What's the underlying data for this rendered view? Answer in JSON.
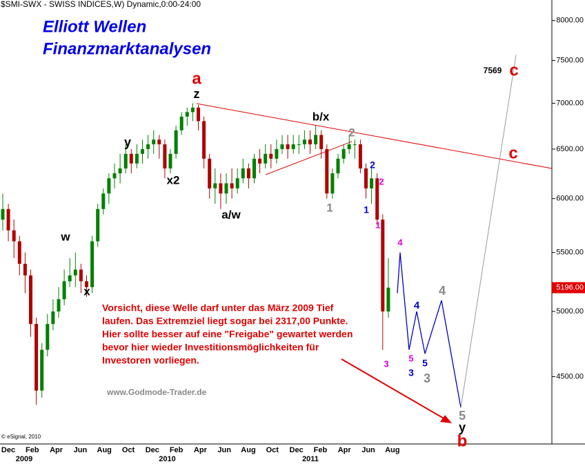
{
  "chart_data": {
    "type": "candlestick",
    "header": "$SMI-SWX - SWISS INDICES,W) Dynamic,0:00-24:00",
    "title": [
      "Elliott Wellen",
      "Finanzmarktanalysen"
    ],
    "log_scale": true,
    "ylim": [
      4050,
      8270
    ],
    "yticks": [
      {
        "value": 8000,
        "label": "8000.00"
      },
      {
        "value": 7500,
        "label": "7500.00"
      },
      {
        "value": 7000,
        "label": "7000.00"
      },
      {
        "value": 6500,
        "label": "6500.00"
      },
      {
        "value": 6000,
        "label": "6000.00"
      },
      {
        "value": 5500,
        "label": "5500.00"
      },
      {
        "value": 5000,
        "label": "5000.00"
      },
      {
        "value": 4500,
        "label": "4500.00"
      }
    ],
    "month_labels": [
      "Dec",
      "Feb",
      "Apr",
      "Jun",
      "Aug",
      "Oct",
      "Dec",
      "Feb",
      "Apr",
      "Jun",
      "Aug",
      "Oct",
      "Dec",
      "Feb",
      "Apr",
      "Jun",
      "Aug"
    ],
    "year_labels": [
      "2009",
      "2010",
      "2011"
    ],
    "up_color": "#008000",
    "down_color": "#b00000",
    "open": [
      5800,
      5900,
      5700,
      5600,
      5400,
      5300,
      4900,
      4400,
      4700,
      4900,
      5000,
      5100,
      5250,
      5300,
      5350,
      5250,
      5200,
      5600,
      5900,
      6050,
      6200,
      6250,
      6300,
      6450,
      6350,
      6450,
      6500,
      6550,
      6600,
      6550,
      6300,
      6450,
      6700,
      6850,
      6900,
      6950,
      6800,
      6400,
      6100,
      6150,
      6050,
      6150,
      6100,
      6200,
      6300,
      6200,
      6400,
      6350,
      6450,
      6400,
      6500,
      6550,
      6500,
      6550,
      6550,
      6600,
      6550,
      6650,
      6500,
      6050,
      6250,
      6400,
      6500,
      6550,
      6550,
      6300,
      6100,
      6200,
      5800,
      5000
    ],
    "high": [
      6050,
      5950,
      5800,
      5650,
      5500,
      5350,
      4950,
      4750,
      4980,
      5100,
      5200,
      5350,
      5450,
      5500,
      5400,
      5300,
      5650,
      5950,
      6100,
      6250,
      6350,
      6450,
      6550,
      6500,
      6550,
      6600,
      6650,
      6700,
      6650,
      6600,
      6500,
      6750,
      6900,
      6950,
      7000,
      6980,
      6850,
      6450,
      6300,
      6250,
      6250,
      6300,
      6300,
      6400,
      6350,
      6450,
      6500,
      6550,
      6550,
      6600,
      6650,
      6650,
      6650,
      6650,
      6700,
      6700,
      6750,
      6700,
      6550,
      6300,
      6450,
      6550,
      6650,
      6600,
      6600,
      6350,
      6300,
      6250,
      5850,
      5450
    ],
    "low": [
      5700,
      5600,
      5450,
      5300,
      5150,
      4800,
      4300,
      4350,
      4650,
      4850,
      4950,
      5050,
      5200,
      5200,
      5150,
      5120,
      5150,
      5550,
      5850,
      5950,
      6100,
      6150,
      6250,
      6250,
      6300,
      6350,
      6400,
      6450,
      6400,
      6200,
      6250,
      6400,
      6650,
      6750,
      6800,
      6700,
      6300,
      6000,
      5950,
      5900,
      5950,
      6000,
      6050,
      6150,
      6100,
      6150,
      6250,
      6300,
      6300,
      6350,
      6450,
      6400,
      6450,
      6450,
      6500,
      6450,
      6500,
      6400,
      6000,
      6000,
      6200,
      6350,
      6450,
      6400,
      6250,
      6000,
      5950,
      5750,
      4700,
      4950
    ],
    "close": [
      5900,
      5700,
      5600,
      5400,
      5300,
      4900,
      4400,
      4700,
      4900,
      5000,
      5100,
      5250,
      5300,
      5350,
      5250,
      5200,
      5600,
      5900,
      6050,
      6200,
      6250,
      6300,
      6450,
      6350,
      6450,
      6500,
      6550,
      6600,
      6550,
      6300,
      6450,
      6700,
      6850,
      6900,
      6950,
      6800,
      6400,
      6100,
      6150,
      6050,
      6150,
      6100,
      6200,
      6300,
      6200,
      6400,
      6350,
      6450,
      6400,
      6500,
      6550,
      6500,
      6550,
      6550,
      6600,
      6550,
      6650,
      6500,
      6050,
      6250,
      6400,
      6500,
      6550,
      6550,
      6300,
      6100,
      6200,
      5800,
      5000,
      5196
    ],
    "last_price": 5196,
    "last_price_label": "5196.00",
    "projection": [
      5150,
      5500,
      4700,
      5000,
      4670,
      5090,
      4280
    ],
    "projection_color": "#0000cc",
    "target": 7569,
    "annotations": [
      {
        "text": "a",
        "color": "#e00000"
      },
      {
        "text": "z",
        "color": "#000000"
      },
      {
        "text": "b/x",
        "color": "#000000"
      },
      {
        "text": "y",
        "color": "#000000"
      },
      {
        "text": "x2",
        "color": "#000000"
      },
      {
        "text": "w",
        "color": "#000000"
      },
      {
        "text": "x",
        "color": "#000000"
      },
      {
        "text": "a/w",
        "color": "#000000"
      },
      {
        "text": "1",
        "color": "#888888"
      },
      {
        "text": "2",
        "color": "#888888"
      },
      {
        "text": "2",
        "color": "#0000cc"
      },
      {
        "text": "2",
        "color": "#e000e0"
      },
      {
        "text": "1",
        "color": "#0000cc"
      },
      {
        "text": "1",
        "color": "#e000e0"
      },
      {
        "text": "4",
        "color": "#e000e0"
      },
      {
        "text": "3",
        "color": "#e000e0"
      },
      {
        "text": "5",
        "color": "#e000e0"
      },
      {
        "text": "3",
        "color": "#0000cc"
      },
      {
        "text": "4",
        "color": "#0000cc"
      },
      {
        "text": "5",
        "color": "#0000cc"
      },
      {
        "text": "3",
        "color": "#888888"
      },
      {
        "text": "4",
        "color": "#888888"
      },
      {
        "text": "5",
        "color": "#888888"
      },
      {
        "text": "y",
        "color": "#000000"
      },
      {
        "text": "b",
        "color": "#e00000"
      },
      {
        "text": "7569",
        "color": "#000000"
      },
      {
        "text": "c",
        "color": "#e00000"
      },
      {
        "text": "c",
        "color": "#e00000"
      }
    ],
    "note": [
      "Vorsicht, diese Welle darf unter das März 2009 Tief",
      "laufen. Das Extremziel liegt sogar bei 2317,00 Punkte.",
      "Hier sollte besser auf eine \"Freigabe\" gewartet werden",
      "bevor hier wieder Investitionsmöglichkeiten für",
      "Investoren vorliegen."
    ],
    "watermark": "www.Godmode-Trader.de",
    "copyright": "© eSignal, 2010"
  }
}
